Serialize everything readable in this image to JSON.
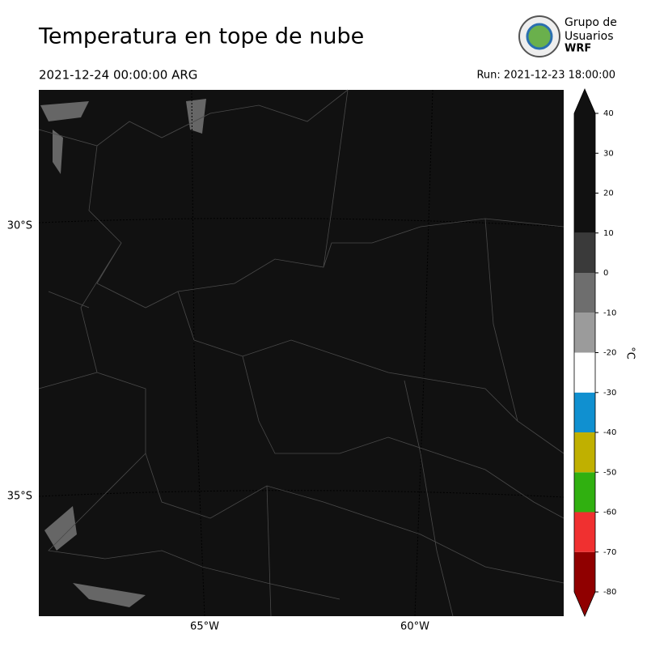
{
  "header": {
    "title": "Temperatura en tope de nube",
    "valid_time": "2021-12-24 00:00:00 ARG",
    "run": "Run: 2021-12-23 18:00:00",
    "logo": [
      "Grupo de",
      "Usuarios",
      "WRF"
    ]
  },
  "map": {
    "lat_labels": [
      "30°S",
      "35°S"
    ],
    "lon_labels": [
      "65°W",
      "60°W"
    ]
  },
  "colorbar": {
    "label": "°C",
    "clim": [
      -80,
      40
    ],
    "ticks": [
      40,
      30,
      20,
      10,
      0,
      -10,
      -20,
      -30,
      -40,
      -50,
      -60,
      -70,
      -80
    ],
    "bounds": [
      -80,
      -70,
      -60,
      -50,
      -40,
      -30,
      -20,
      -10,
      0,
      10,
      40
    ],
    "colors": [
      "#900000",
      "#f03030",
      "#30b010",
      "#c0b000",
      "#1090d0",
      "#ffffff",
      "#9b9b9b",
      "#6e6e6e",
      "#3a3a3a",
      "#111111"
    ]
  }
}
